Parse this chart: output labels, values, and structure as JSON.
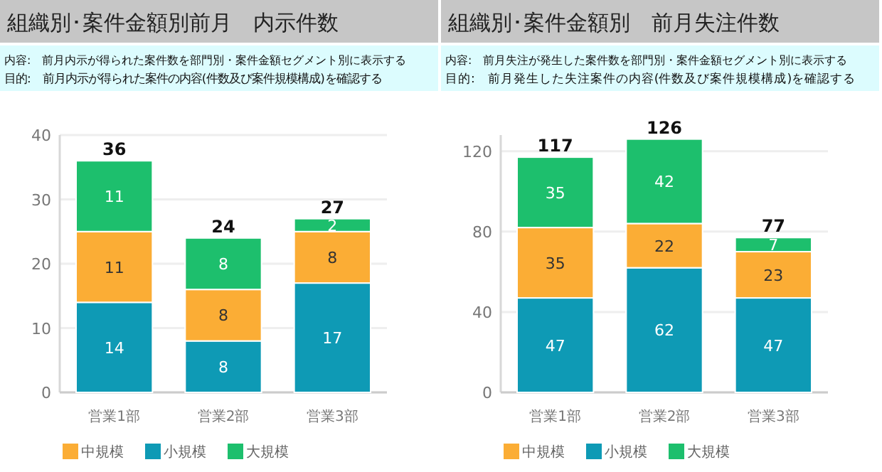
{
  "chart_data": [
    {
      "type": "bar",
      "title": "組織別･案件金額別前月　内示件数",
      "subtitle": "内容:　前月内示が得られた案件数を部門別・案件金額セグメント別に表示する",
      "annotations": [
        "目的:　前月内示が得られた案件の内容(件数及び案件規模構成)を確認する"
      ],
      "categories": [
        "営業1部",
        "営業2部",
        "営業3部"
      ],
      "stacked": true,
      "data_labels": true,
      "totals": [
        "36",
        "24",
        "27"
      ],
      "ylim": [
        0,
        40
      ],
      "yticks": [
        0,
        10,
        20,
        30,
        40
      ],
      "grid": "y",
      "legend": "bottom",
      "series": [
        {
          "name": "小規模",
          "color": "#0e9ab5",
          "values": [
            14,
            8,
            17
          ]
        },
        {
          "name": "中規模",
          "color": "#fbad35",
          "values": [
            11,
            8,
            8
          ]
        },
        {
          "name": "大規模",
          "color": "#1dbf6d",
          "values": [
            11,
            8,
            2
          ]
        }
      ]
    },
    {
      "type": "bar",
      "title": "組織別･案件金額別　前月失注件数",
      "subtitle": "内容:　前月失注が発生した案件数を部門別・案件金額セグメント別に表示する",
      "annotations": [
        "目的:　前月発生した失注案件の内容(件数及び案件規模構成)を確認する"
      ],
      "categories": [
        "営業1部",
        "営業2部",
        "営業3部"
      ],
      "stacked": true,
      "data_labels": true,
      "totals": [
        "117",
        "126",
        "77"
      ],
      "ylim": [
        0,
        128
      ],
      "yticks": [
        0,
        40,
        80,
        120
      ],
      "grid": "y",
      "legend": "bottom",
      "series": [
        {
          "name": "小規模",
          "color": "#0e9ab5",
          "values": [
            47,
            62,
            47
          ]
        },
        {
          "name": "中規模",
          "color": "#fbad35",
          "values": [
            35,
            22,
            23
          ]
        },
        {
          "name": "大規模",
          "color": "#1dbf6d",
          "values": [
            35,
            42,
            7
          ]
        }
      ]
    }
  ]
}
